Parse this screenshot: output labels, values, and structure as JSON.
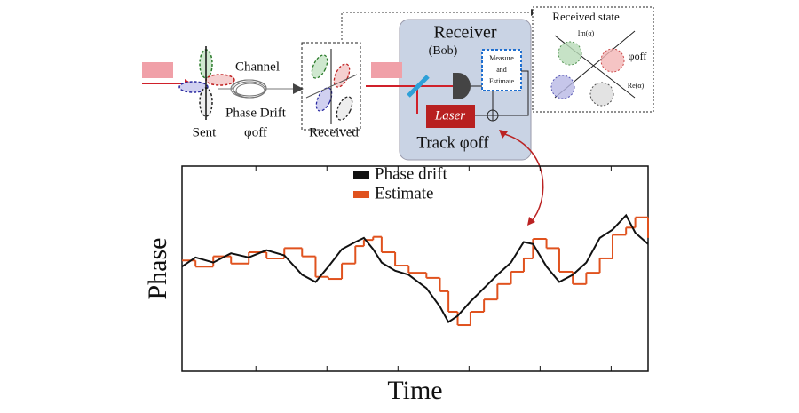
{
  "diagram": {
    "sent": "Sent",
    "channel": "Channel",
    "phase_drift": "Phase Drift",
    "phi_channel": "φoff",
    "received": "Received",
    "receiver": "Receiver",
    "bob": "(Bob)",
    "measure_lines": [
      "Measure",
      "and",
      "Estimate"
    ],
    "laser": "Laser",
    "track": "Track φoff",
    "received_state": "Received state",
    "im": "Im(α)",
    "re": "Re(α)",
    "phi_state": "φoff"
  },
  "chart_data": {
    "type": "line",
    "xlabel": "Time",
    "ylabel": "Phase",
    "x": [
      0,
      0.19,
      0.44,
      0.69,
      0.94,
      1.19,
      1.44,
      1.69,
      1.88,
      2.06,
      2.25,
      2.44,
      2.56,
      2.69,
      2.81,
      3.0,
      3.19,
      3.44,
      3.63,
      3.75,
      3.88,
      4.06,
      4.25,
      4.44,
      4.63,
      4.81,
      4.94,
      5.13,
      5.31,
      5.5,
      5.69,
      5.88,
      6.06,
      6.25,
      6.38,
      6.56
    ],
    "series": [
      {
        "name": "Phase drift",
        "color": "#111111",
        "values": [
          0.02,
          0.11,
          0.06,
          0.15,
          0.11,
          0.18,
          0.13,
          -0.06,
          -0.13,
          0.02,
          0.19,
          0.26,
          0.3,
          0.19,
          0.06,
          -0.02,
          -0.06,
          -0.19,
          -0.37,
          -0.52,
          -0.46,
          -0.32,
          -0.19,
          -0.06,
          0.06,
          0.26,
          0.24,
          0.02,
          -0.13,
          -0.06,
          0.06,
          0.3,
          0.38,
          0.52,
          0.35,
          0.24
        ]
      },
      {
        "name": "Estimate",
        "color": "#e0521e",
        "drawstyle": "steps",
        "values": [
          0.08,
          0.02,
          0.12,
          0.05,
          0.16,
          0.1,
          0.2,
          0.12,
          -0.08,
          -0.1,
          0.05,
          0.22,
          0.28,
          0.31,
          0.16,
          0.03,
          -0.04,
          -0.09,
          -0.22,
          -0.42,
          -0.55,
          -0.42,
          -0.3,
          -0.15,
          -0.03,
          0.1,
          0.29,
          0.2,
          -0.03,
          -0.15,
          -0.04,
          0.1,
          0.33,
          0.4,
          0.5,
          0.3
        ]
      }
    ],
    "xlim": [
      0,
      6.56
    ],
    "ylim": [
      -1,
      1
    ],
    "xticks": [
      1.04,
      2.04,
      3.04,
      4.04,
      5.04,
      6.04
    ],
    "legend": "upper left"
  }
}
